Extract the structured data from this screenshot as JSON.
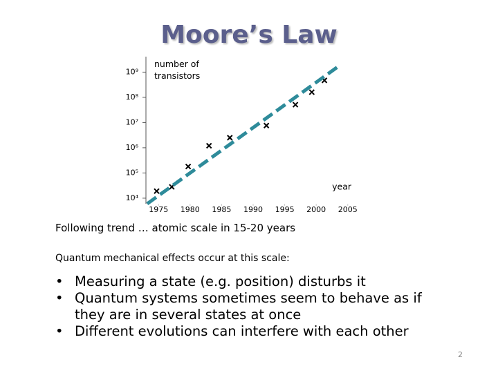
{
  "slide": {
    "title": "Moore’s Law",
    "trend_note": "Following trend … atomic scale in 15-20 years",
    "intro": "Quantum mechanical effects occur at this scale:",
    "bullets": [
      "Measuring a state (e.g. position) disturbs it",
      "Quantum systems sometimes seem to behave as if they are in several states at once",
      "Different evolutions can interfere with each other"
    ],
    "page_number": "2"
  },
  "chart_data": {
    "type": "scatter",
    "y_label": "number of transistors",
    "x_label": "year",
    "ylog": true,
    "xlim": [
      1973,
      2007
    ],
    "xticks": [
      1975,
      1980,
      1985,
      1990,
      1995,
      2000,
      2005
    ],
    "ylim": [
      6000,
      3000000000
    ],
    "yticks": [
      {
        "value": 10000,
        "label": "10⁴"
      },
      {
        "value": 100000,
        "label": "10⁵"
      },
      {
        "value": 1000000,
        "label": "10⁶"
      },
      {
        "value": 10000000,
        "label": "10⁷"
      },
      {
        "value": 100000000,
        "label": "10⁸"
      },
      {
        "value": 1000000000,
        "label": "10⁹"
      }
    ],
    "series": [
      {
        "color": "#000000",
        "marker": "x",
        "x": [
          1974.7,
          1977.1,
          1979.7,
          1983,
          1986.3,
          1992.1,
          1996.7,
          1999.3,
          2001.3
        ],
        "values": [
          19000,
          28000,
          180000,
          1200000,
          2500000,
          7600000,
          51000000,
          160000000,
          470000000
        ]
      },
      {
        "color": "#2e8b9a",
        "line": "dashed",
        "x": [
          1973.2,
          2003.8
        ],
        "values": [
          6000,
          1900000000
        ]
      }
    ]
  }
}
